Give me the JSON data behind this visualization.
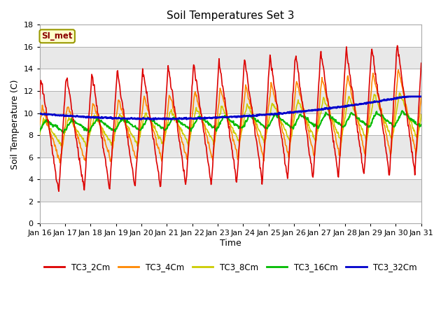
{
  "title": "Soil Temperatures Set 3",
  "xlabel": "Time",
  "ylabel": "Soil Temperature (C)",
  "ylim": [
    0,
    18
  ],
  "yticks": [
    0,
    2,
    4,
    6,
    8,
    10,
    12,
    14,
    16,
    18
  ],
  "series": {
    "TC3_2Cm": {
      "color": "#dd0000",
      "lw": 1.2
    },
    "TC3_4Cm": {
      "color": "#ff8800",
      "lw": 1.2
    },
    "TC3_8Cm": {
      "color": "#cccc00",
      "lw": 1.2
    },
    "TC3_16Cm": {
      "color": "#00bb00",
      "lw": 1.5
    },
    "TC3_32Cm": {
      "color": "#0000cc",
      "lw": 2.0
    }
  },
  "xtick_labels": [
    "Jan 16",
    "Jan 17",
    "Jan 18",
    "Jan 19",
    "Jan 20",
    "Jan 21",
    "Jan 22",
    "Jan 23",
    "Jan 24",
    "Jan 25",
    "Jan 26",
    "Jan 27",
    "Jan 28",
    "Jan 29",
    "Jan 30",
    "Jan 31"
  ],
  "annotation_text": "SI_met",
  "annotation_bg": "#ffffcc",
  "annotation_border": "#999900",
  "band_colors": [
    "#ffffff",
    "#e8e8e8"
  ]
}
